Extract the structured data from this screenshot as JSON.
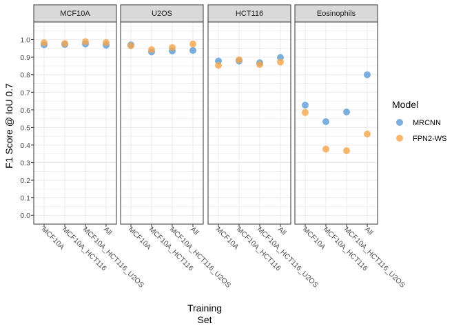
{
  "chart_data": {
    "type": "scatter",
    "xlabel_lines": [
      "Training",
      "Set"
    ],
    "ylabel": "F1 Score @ IoU 0.7",
    "ylim": [
      -0.05,
      1.1
    ],
    "yticks": [
      "0.0",
      "0.1",
      "0.2",
      "0.3",
      "0.4",
      "0.5",
      "0.6",
      "0.7",
      "0.8",
      "0.9",
      "1.0"
    ],
    "categories": [
      "MCF10A",
      "MCF10A_HCT116",
      "MCF10A_HCT116_U2OS",
      "All"
    ],
    "legend": {
      "title": "Model",
      "position": "right"
    },
    "grid": true,
    "colors": {
      "MRCNN": "#5b9bd5",
      "FPN2-WS": "#f5a54a"
    },
    "panels": [
      {
        "name": "MCF10A",
        "series": [
          {
            "name": "MRCNN",
            "values": [
              0.97,
              0.972,
              0.975,
              0.968
            ]
          },
          {
            "name": "FPN2-WS",
            "values": [
              0.982,
              0.978,
              0.988,
              0.983
            ]
          }
        ]
      },
      {
        "name": "U2OS",
        "series": [
          {
            "name": "MRCNN",
            "values": [
              0.97,
              0.93,
              0.935,
              0.938
            ]
          },
          {
            "name": "FPN2-WS",
            "values": [
              0.965,
              0.943,
              0.955,
              0.975
            ]
          }
        ]
      },
      {
        "name": "HCT116",
        "series": [
          {
            "name": "MRCNN",
            "values": [
              0.878,
              0.878,
              0.868,
              0.898
            ]
          },
          {
            "name": "FPN2-WS",
            "values": [
              0.853,
              0.885,
              0.858,
              0.872
            ]
          }
        ]
      },
      {
        "name": "Eosinophils",
        "series": [
          {
            "name": "MRCNN",
            "values": [
              0.627,
              0.533,
              0.588,
              0.8
            ]
          },
          {
            "name": "FPN2-WS",
            "values": [
              0.585,
              0.377,
              0.368,
              0.463
            ]
          }
        ]
      }
    ]
  }
}
